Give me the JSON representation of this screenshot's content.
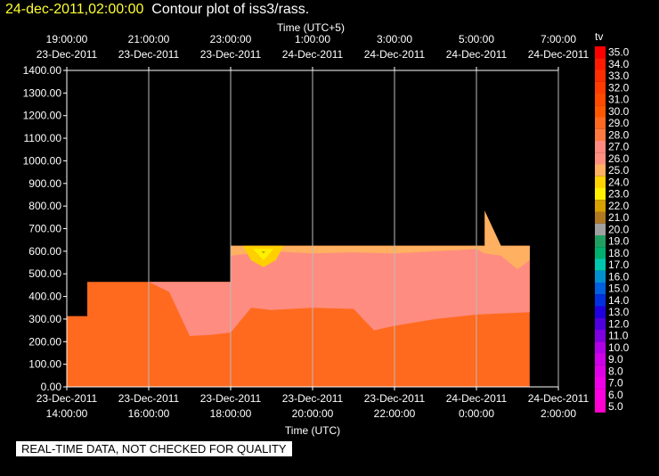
{
  "header": {
    "timestamp": "24-dec-2011,02:00:00",
    "title": "Contour plot of iss3/rass."
  },
  "footer_note": "REAL-TIME DATA, NOT CHECKED FOR QUALITY",
  "chart_data": {
    "type": "contour",
    "title": "Contour plot of iss3/rass.",
    "top_axis_label": "Time (UTC+5)",
    "bottom_axis_label": "Time (UTC)",
    "top_ticks": [
      {
        "time": "19:00:00",
        "date": "23-Dec-2011"
      },
      {
        "time": "21:00:00",
        "date": "23-Dec-2011"
      },
      {
        "time": "23:00:00",
        "date": "23-Dec-2011"
      },
      {
        "time": "1:00:00",
        "date": "24-Dec-2011"
      },
      {
        "time": "3:00:00",
        "date": "24-Dec-2011"
      },
      {
        "time": "5:00:00",
        "date": "24-Dec-2011"
      },
      {
        "time": "7:00:00",
        "date": "24-Dec-2011"
      }
    ],
    "bottom_ticks": [
      {
        "date": "23-Dec-2011",
        "time": "14:00:00"
      },
      {
        "date": "23-Dec-2011",
        "time": "16:00:00"
      },
      {
        "date": "23-Dec-2011",
        "time": "18:00:00"
      },
      {
        "date": "23-Dec-2011",
        "time": "20:00:00"
      },
      {
        "date": "23-Dec-2011",
        "time": "22:00:00"
      },
      {
        "date": "24-Dec-2011",
        "time": "0:00:00"
      },
      {
        "date": "24-Dec-2011",
        "time": "2:00:00"
      }
    ],
    "x_hours": [
      14,
      16,
      18,
      20,
      22,
      24,
      26
    ],
    "xlim": [
      14,
      26
    ],
    "y_ticks": [
      "0.00",
      "100.00",
      "200.00",
      "300.00",
      "400.00",
      "500.00",
      "600.00",
      "700.00",
      "800.00",
      "900.00",
      "1000.00",
      "1100.00",
      "1200.00",
      "1300.00",
      "1400.00"
    ],
    "ylim": [
      0,
      1400
    ],
    "legend": {
      "label": "tv",
      "levels": [
        "35.0",
        "34.0",
        "33.0",
        "32.0",
        "31.0",
        "30.0",
        "29.0",
        "28.0",
        "27.0",
        "26.0",
        "25.0",
        "24.0",
        "23.0",
        "22.0",
        "21.0",
        "20.0",
        "19.0",
        "18.0",
        "17.0",
        "16.0",
        "15.0",
        "14.0",
        "13.0",
        "12.0",
        "11.0",
        "10.0",
        "9.0",
        "8.0",
        "7.0",
        "6.0",
        "5.0"
      ],
      "colors": [
        "#ff0000",
        "#ff1a00",
        "#ff2e00",
        "#ff3c00",
        "#ff4a00",
        "#ff5800",
        "#ff6a20",
        "#ff7a40",
        "#ff8a80",
        "#ff9080",
        "#ffb060",
        "#ffd200",
        "#fff000",
        "#d8a000",
        "#b07820",
        "#a0a0a0",
        "#20a060",
        "#00b070",
        "#00c8b0",
        "#0090d0",
        "#0060e0",
        "#0030e0",
        "#2000e0",
        "#5000e0",
        "#8000e0",
        "#b000e8",
        "#d000e8",
        "#e000e8",
        "#f000e8",
        "#ff00e0",
        "#ff00d0"
      ]
    },
    "regions": [
      {
        "tv": 28.0,
        "color": "#ff6a1f",
        "points": [
          [
            14.0,
            0
          ],
          [
            14.0,
            313
          ],
          [
            14.5,
            313
          ],
          [
            14.5,
            464
          ],
          [
            18.0,
            464
          ],
          [
            18.0,
            624
          ],
          [
            25.3,
            624
          ],
          [
            25.3,
            0
          ]
        ]
      },
      {
        "tv": 26.0,
        "color": "#ff8c80",
        "points": [
          [
            17.0,
            225
          ],
          [
            17.5,
            230
          ],
          [
            18.0,
            240
          ],
          [
            18.5,
            350
          ],
          [
            19.0,
            340
          ],
          [
            20.0,
            350
          ],
          [
            21.0,
            345
          ],
          [
            21.5,
            250
          ],
          [
            22.0,
            270
          ],
          [
            23.0,
            300
          ],
          [
            24.0,
            320
          ],
          [
            25.3,
            330
          ],
          [
            25.3,
            624
          ],
          [
            18.0,
            624
          ],
          [
            18.0,
            464
          ],
          [
            16.0,
            464
          ],
          [
            16.5,
            420
          ]
        ]
      },
      {
        "tv": 25.0,
        "color": "#ffb060",
        "points": [
          [
            18.0,
            580
          ],
          [
            19.0,
            600
          ],
          [
            20.0,
            590
          ],
          [
            21.0,
            595
          ],
          [
            22.0,
            590
          ],
          [
            23.0,
            600
          ],
          [
            24.0,
            610
          ],
          [
            24.2,
            590
          ],
          [
            24.6,
            580
          ],
          [
            25.0,
            520
          ],
          [
            25.3,
            560
          ],
          [
            25.3,
            624
          ],
          [
            24.6,
            624
          ],
          [
            24.2,
            780
          ],
          [
            24.2,
            624
          ],
          [
            18.0,
            624
          ]
        ]
      },
      {
        "tv": 24.0,
        "color": "#ffd000",
        "points": [
          [
            18.3,
            624
          ],
          [
            18.5,
            560
          ],
          [
            18.8,
            530
          ],
          [
            19.1,
            560
          ],
          [
            19.3,
            624
          ]
        ]
      },
      {
        "tv": 23.0,
        "color": "#fff000",
        "points": [
          [
            18.55,
            610
          ],
          [
            18.8,
            560
          ],
          [
            19.05,
            610
          ]
        ]
      },
      {
        "tv": 22.0,
        "color": "#c8a000",
        "points": [
          [
            18.75,
            600
          ],
          [
            18.8,
            590
          ],
          [
            18.85,
            600
          ]
        ]
      }
    ]
  }
}
